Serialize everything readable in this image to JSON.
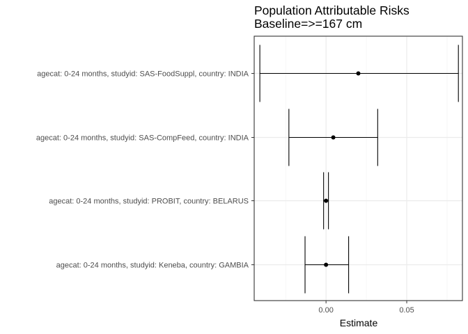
{
  "chart_data": {
    "type": "forest",
    "title_lines": [
      "Population Attributable Risks",
      "Baseline=>=167 cm"
    ],
    "xlabel": "Estimate",
    "ylabel": "",
    "xlim": [
      -0.0445,
      0.0845
    ],
    "x_ticks": [
      0.0,
      0.05
    ],
    "x_tick_labels": [
      "0.00",
      "0.05"
    ],
    "grid": true,
    "categories": [
      "agecat: 0-24 months, studyid: SAS-FoodSuppl, country: INDIA",
      "agecat: 0-24 months, studyid: SAS-CompFeed, country: INDIA",
      "agecat: 0-24 months, studyid: PROBIT, country: BELARUS",
      "agecat: 0-24 months, studyid: Keneba, country: GAMBIA"
    ],
    "estimates": [
      0.02,
      0.0045,
      0.0,
      0.0
    ],
    "lower": [
      -0.041,
      -0.023,
      -0.0015,
      -0.013
    ],
    "upper": [
      0.082,
      0.032,
      0.0015,
      0.014
    ],
    "colors": {
      "point": "#000000",
      "grid_major": "#ebebeb",
      "grid_minor": "#f5f5f5",
      "panel_border": "#333333"
    }
  }
}
